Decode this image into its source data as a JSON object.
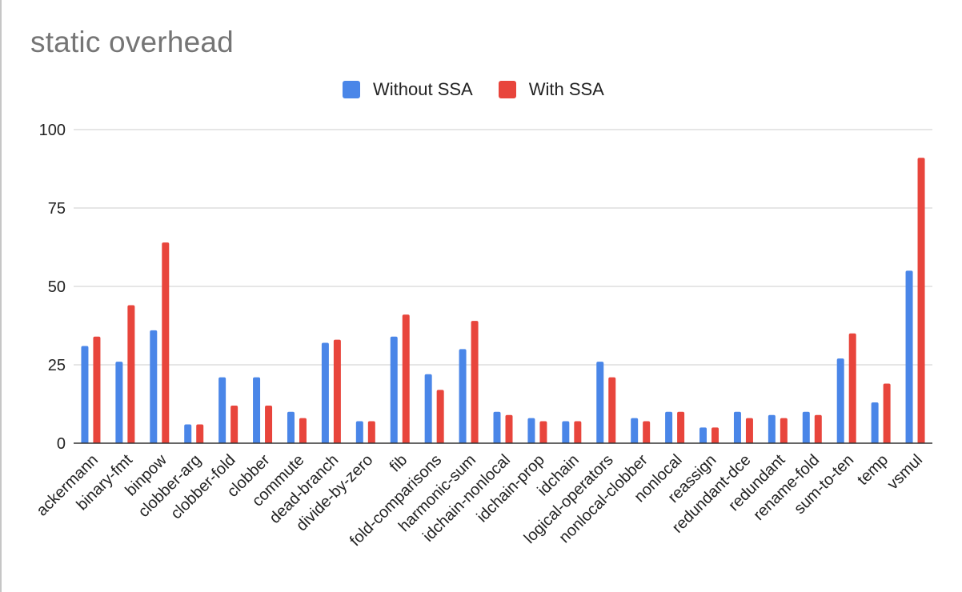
{
  "colors": {
    "series_1": "#4a86e8",
    "series_2": "#e8453c",
    "grid": "#cccccc",
    "axis": "#333333",
    "text": "#222222",
    "title": "#757575"
  },
  "chart_data": {
    "type": "bar",
    "title": "static overhead",
    "xlabel": "",
    "ylabel": "",
    "ylim": [
      0,
      100
    ],
    "yticks": [
      0,
      25,
      50,
      75,
      100
    ],
    "grid": true,
    "legend_position": "top",
    "categories": [
      "ackermann",
      "binary-fmt",
      "binpow",
      "clobber-arg",
      "clobber-fold",
      "clobber",
      "commute",
      "dead-branch",
      "divide-by-zero",
      "fib",
      "fold-comparisons",
      "harmonic-sum",
      "idchain-nonlocal",
      "idchain-prop",
      "idchain",
      "logical-operators",
      "nonlocal-clobber",
      "nonlocal",
      "reassign",
      "redundant-dce",
      "redundant",
      "rename-fold",
      "sum-to-ten",
      "temp",
      "vsmul"
    ],
    "series": [
      {
        "name": "Without SSA",
        "values": [
          31,
          26,
          36,
          6,
          21,
          21,
          10,
          32,
          7,
          34,
          22,
          30,
          10,
          8,
          7,
          26,
          8,
          10,
          5,
          10,
          9,
          10,
          27,
          13,
          55
        ]
      },
      {
        "name": "With SSA",
        "values": [
          34,
          44,
          64,
          6,
          12,
          12,
          8,
          33,
          7,
          41,
          17,
          39,
          9,
          7,
          7,
          21,
          7,
          10,
          5,
          8,
          8,
          9,
          35,
          19,
          91
        ]
      }
    ]
  }
}
